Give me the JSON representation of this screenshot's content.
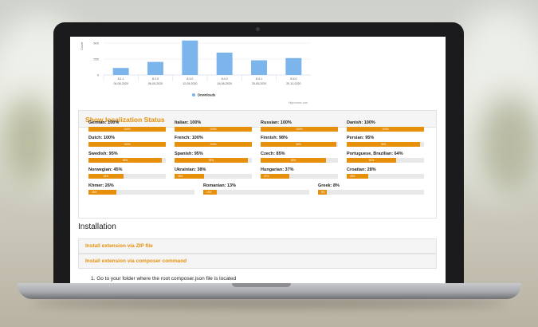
{
  "chart_data": {
    "type": "bar",
    "categories": [
      "8.1.1",
      "8.2.0",
      "8.3.0",
      "8.4.0",
      "8.4.1",
      "8.5.0"
    ],
    "dates": [
      "04-05-2020",
      "06-05-2020",
      "12-05-2020",
      "18-08-2020",
      "25-05-2020",
      "20-10-2020"
    ],
    "values": [
      110,
      205,
      540,
      350,
      230,
      265
    ],
    "y_ticks": [
      "500",
      "250",
      "0"
    ],
    "ylabel": "Count",
    "legend": [
      "Downloads"
    ],
    "legend_position": "bottom",
    "color": "#7cb5ec",
    "credits": "Highcharts.com"
  },
  "panel": {
    "title": "Show localization Status"
  },
  "localizations": [
    {
      "label": "German: 100%",
      "value": 100,
      "bar_text": "100%"
    },
    {
      "label": "Italian: 100%",
      "value": 100,
      "bar_text": "100%"
    },
    {
      "label": "Russian: 100%",
      "value": 100,
      "bar_text": "100%"
    },
    {
      "label": "Danish: 100%",
      "value": 100,
      "bar_text": "100%"
    },
    {
      "label": "Dutch: 100%",
      "value": 100,
      "bar_text": "100%"
    },
    {
      "label": "French: 100%",
      "value": 100,
      "bar_text": "100%"
    },
    {
      "label": "Finnish: 98%",
      "value": 98,
      "bar_text": "98%"
    },
    {
      "label": "Persian: 95%",
      "value": 95,
      "bar_text": "95%"
    },
    {
      "label": "Swedish: 95%",
      "value": 95,
      "bar_text": "95%"
    },
    {
      "label": "Spanish: 95%",
      "value": 95,
      "bar_text": "95%"
    },
    {
      "label": "Czech: 85%",
      "value": 85,
      "bar_text": "85%"
    },
    {
      "label": "Portuguese, Brazilian: 64%",
      "value": 64,
      "bar_text": "64%"
    },
    {
      "label": "Norwegian: 45%",
      "value": 45,
      "bar_text": "45%"
    },
    {
      "label": "Ukrainian: 38%",
      "value": 38,
      "bar_text": "38%"
    },
    {
      "label": "Hungarian: 37%",
      "value": 37,
      "bar_text": "37%"
    },
    {
      "label": "Croatian: 28%",
      "value": 28,
      "bar_text": "28%"
    },
    {
      "label": "Khmer: 26%",
      "value": 26,
      "bar_text": "26%"
    },
    {
      "label": "Romanian: 13%",
      "value": 13,
      "bar_text": "13%"
    },
    {
      "label": "Greek: 8%",
      "value": 8,
      "bar_text": "8%"
    }
  ],
  "installation": {
    "title": "Installation",
    "zip_label": "Install extension via ZIP file",
    "composer_label": "Install extension via composer command",
    "step_text": "1. Go to your folder where the root composer.json file is located"
  }
}
